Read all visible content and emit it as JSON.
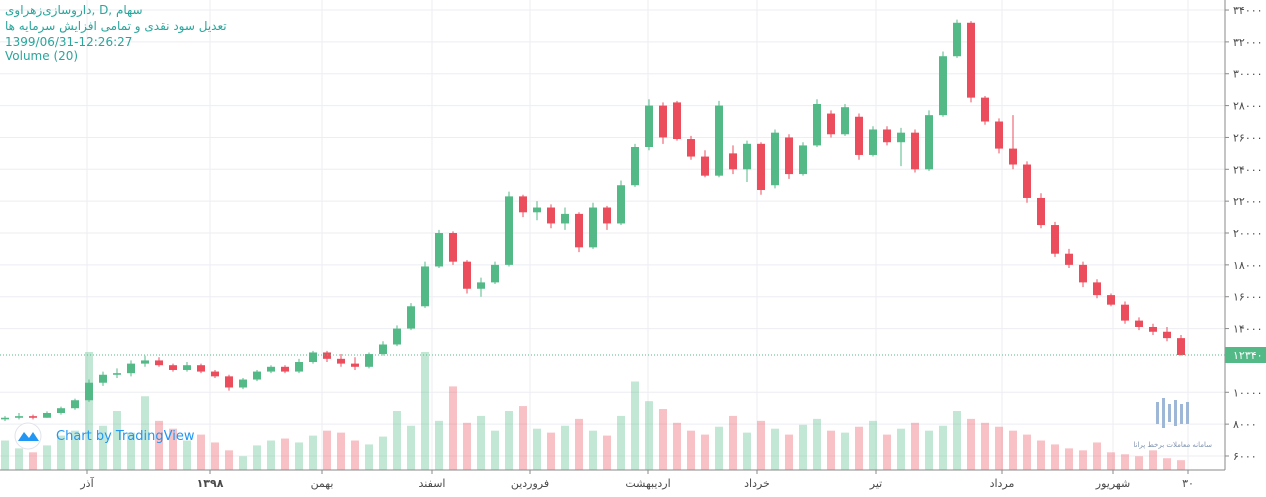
{
  "chart_data": {
    "type": "candlestick",
    "title": "داروسازی‌زهراوی, D, سهام",
    "subtitle": "تعدیل سود نقدی و تمامی افزایش سرمایه ها",
    "timestamp": "1399/06/31-12:26:27",
    "volume_label": "Volume (20)",
    "watermark": "Chart by TradingView",
    "broker_label": "سامانه معاملات برخط پرانا",
    "x_labels": [
      "آذر",
      "۱۳۹۸",
      "بهمن",
      "اسفند",
      "فروردین",
      "اردیبهشت",
      "خرداد",
      "تیر",
      "مرداد",
      "شهریور",
      "۳۰"
    ],
    "up_color": "#53b987",
    "down_color": "#eb4d5c",
    "ylim": [
      5120,
      34630
    ],
    "yticks": [
      {
        "value": 34000,
        "label": "۳۴۰۰۰"
      },
      {
        "value": 32000,
        "label": "۳۲۰۰۰"
      },
      {
        "value": 30000,
        "label": "۳۰۰۰۰"
      },
      {
        "value": 28000,
        "label": "۲۸۰۰۰"
      },
      {
        "value": 26000,
        "label": "۲۶۰۰۰"
      },
      {
        "value": 24000,
        "label": "۲۴۰۰۰"
      },
      {
        "value": 22000,
        "label": "۲۲۰۰۰"
      },
      {
        "value": 20000,
        "label": "۲۰۰۰۰"
      },
      {
        "value": 18000,
        "label": "۱۸۰۰۰"
      },
      {
        "value": 16000,
        "label": "۱۶۰۰۰"
      },
      {
        "value": 14000,
        "label": "۱۴۰۰۰"
      },
      {
        "value": 10000,
        "label": "۱۰۰۰۰"
      },
      {
        "value": 8000,
        "label": "۸۰۰۰"
      },
      {
        "value": 6000,
        "label": "۶۰۰۰"
      }
    ],
    "last_price": {
      "value": 12340,
      "label": "۱۲۳۴۰"
    },
    "grid": true,
    "open": [
      8300,
      8400,
      8500,
      8400,
      8700,
      9000,
      9500,
      10600,
      11100,
      11200,
      11800,
      12000,
      11700,
      11400,
      11700,
      11300,
      11000,
      10300,
      10800,
      11300,
      11600,
      11300,
      11900,
      12500,
      12100,
      11800,
      11600,
      12400,
      13000,
      14000,
      15400,
      17900,
      20000,
      18200,
      16500,
      16900,
      18000,
      22300,
      21300,
      21600,
      20600,
      21200,
      19100,
      21600,
      20600,
      23000,
      25400,
      28000,
      28200,
      25900,
      24800,
      23600,
      25000,
      24000,
      25600,
      23000,
      26000,
      23700,
      25500,
      27500,
      26200,
      27300,
      24900,
      26500,
      25700,
      26300,
      24000,
      27400,
      31100,
      33200,
      28500,
      27000,
      25300,
      24300,
      22200,
      20500,
      18700,
      18000,
      16900,
      16100,
      15500,
      14500,
      14100,
      13800,
      13400
    ],
    "high": [
      8500,
      8700,
      8600,
      8800,
      9100,
      9600,
      10800,
      11300,
      11500,
      12000,
      12300,
      12200,
      11800,
      11900,
      11800,
      11400,
      11100,
      10900,
      11400,
      11700,
      11700,
      12100,
      12600,
      12600,
      12400,
      12200,
      12500,
      13200,
      14200,
      15600,
      18200,
      20200,
      20100,
      18300,
      17200,
      18200,
      22600,
      22400,
      22000,
      21800,
      21600,
      21300,
      21900,
      21700,
      23300,
      25600,
      28400,
      28200,
      28300,
      26100,
      25200,
      28300,
      25500,
      25800,
      25700,
      26500,
      26200,
      25700,
      28400,
      27700,
      28100,
      27500,
      26700,
      26700,
      26600,
      26500,
      27700,
      31400,
      33400,
      33300,
      28600,
      27200,
      27400,
      24500,
      22500,
      20700,
      19000,
      18200,
      17100,
      16200,
      15700,
      14700,
      14300,
      14100,
      13600
    ],
    "low": [
      8200,
      8300,
      8300,
      8400,
      8600,
      8900,
      9400,
      10400,
      10900,
      11000,
      11600,
      11600,
      11300,
      11300,
      11200,
      10900,
      10100,
      10200,
      10700,
      11200,
      11200,
      11200,
      11800,
      11900,
      11600,
      11400,
      11500,
      12300,
      12900,
      13900,
      15300,
      17800,
      18000,
      16200,
      16000,
      16800,
      17900,
      21000,
      20800,
      20300,
      20200,
      18800,
      19000,
      20200,
      20500,
      22900,
      25200,
      25600,
      25800,
      24600,
      23500,
      23500,
      23700,
      23200,
      22400,
      22800,
      23400,
      23600,
      25400,
      26000,
      26100,
      24600,
      24800,
      25500,
      24200,
      23800,
      23900,
      27300,
      31000,
      28200,
      26800,
      25000,
      24000,
      21900,
      20300,
      18500,
      17800,
      16600,
      15900,
      15400,
      14300,
      13900,
      13600,
      13200,
      12300
    ],
    "close": [
      8400,
      8500,
      8400,
      8700,
      9000,
      9500,
      10600,
      11100,
      11200,
      11800,
      12000,
      11700,
      11400,
      11700,
      11300,
      11000,
      10300,
      10800,
      11300,
      11600,
      11300,
      11900,
      12500,
      12100,
      11800,
      11600,
      12400,
      13000,
      14000,
      15400,
      17900,
      20000,
      18200,
      16500,
      16900,
      18000,
      22300,
      21300,
      21600,
      20600,
      21200,
      19100,
      21600,
      20600,
      23000,
      25400,
      28000,
      26000,
      25900,
      24800,
      23600,
      28000,
      24000,
      25600,
      22700,
      26300,
      23700,
      25500,
      28100,
      26200,
      27900,
      24900,
      26500,
      25700,
      26300,
      24000,
      27400,
      31100,
      33200,
      28500,
      27000,
      25300,
      24300,
      22200,
      20500,
      18700,
      18000,
      16900,
      16100,
      15500,
      14500,
      14100,
      13800,
      13400,
      12340
    ],
    "volume": [
      30,
      22,
      18,
      25,
      35,
      40,
      120,
      45,
      60,
      38,
      75,
      50,
      42,
      30,
      36,
      28,
      20,
      14,
      25,
      30,
      32,
      28,
      35,
      40,
      38,
      30,
      26,
      34,
      60,
      45,
      120,
      50,
      85,
      48,
      55,
      40,
      60,
      65,
      42,
      38,
      45,
      52,
      40,
      35,
      55,
      90,
      70,
      62,
      48,
      40,
      36,
      44,
      55,
      38,
      50,
      42,
      36,
      46,
      52,
      40,
      38,
      44,
      50,
      36,
      42,
      48,
      40,
      45,
      60,
      52,
      48,
      44,
      40,
      36,
      30,
      26,
      22,
      20,
      28,
      18,
      16,
      14,
      20,
      12,
      10
    ]
  }
}
